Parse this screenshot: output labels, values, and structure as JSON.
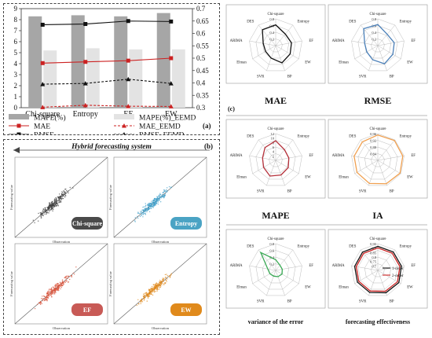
{
  "panel_a": {
    "label": "(a)",
    "chart_data": {
      "type": "bar+line",
      "categories": [
        "Chi-square",
        "Entropy",
        "EF",
        "EW"
      ],
      "left_axis": {
        "ylim": [
          0,
          9
        ],
        "ticks": [
          "0",
          "1",
          "2",
          "3",
          "4",
          "5",
          "6",
          "7",
          "8",
          "9"
        ]
      },
      "right_axis": {
        "ylim": [
          0.3,
          0.7
        ],
        "ticks": [
          "0.3",
          "0.35",
          "0.4",
          "0.45",
          "0.5",
          "0.55",
          "0.6",
          "0.65",
          "0.7"
        ]
      },
      "series": [
        {
          "name": "MAPE(%)",
          "kind": "bar",
          "axis": "left",
          "color": "#a6a6a6",
          "values": [
            8.3,
            8.4,
            8.3,
            8.6
          ]
        },
        {
          "name": "MAPE(%)_EEMD",
          "kind": "bar",
          "axis": "left",
          "color": "#e3e3e3",
          "values": [
            5.2,
            5.4,
            5.3,
            5.3
          ]
        },
        {
          "name": "MAE",
          "kind": "line",
          "axis": "right",
          "color": "#cc2222",
          "dash": "solid",
          "marker": "square",
          "values": [
            0.48,
            0.485,
            0.49,
            0.5
          ]
        },
        {
          "name": "MAE_EEMD",
          "kind": "line",
          "axis": "right",
          "color": "#cc2222",
          "dash": "dashed",
          "marker": "triangle",
          "values": [
            0.302,
            0.31,
            0.306,
            0.305
          ]
        },
        {
          "name": "RMSE",
          "kind": "line",
          "axis": "right",
          "color": "#111111",
          "dash": "solid",
          "marker": "square",
          "values": [
            0.635,
            0.638,
            0.65,
            0.648
          ]
        },
        {
          "name": "RMSE_EEMD",
          "kind": "line",
          "axis": "right",
          "color": "#111111",
          "dash": "dashed",
          "marker": "triangle",
          "values": [
            0.395,
            0.398,
            0.415,
            0.398
          ]
        }
      ]
    }
  },
  "panel_b": {
    "label": "(b)",
    "banner": "Hybrid forecasting system",
    "x_label": "Observation",
    "y_label": "Forecasting value",
    "scatters": [
      {
        "badge": "Chi-square",
        "color": "#3c3c3c",
        "badge_color": "#4a4a4a"
      },
      {
        "badge": "Entropy",
        "color": "#3d9dc8",
        "badge_color": "#4aa3c4"
      },
      {
        "badge": "EF",
        "color": "#d9543c",
        "badge_color": "#c85a56"
      },
      {
        "badge": "EW",
        "color": "#e08a1c",
        "badge_color": "#e08a1c"
      }
    ]
  },
  "panel_c": {
    "label": "(c)",
    "axes": [
      "Chi-square",
      "Entropy",
      "EF",
      "EW",
      "BP",
      "SVR",
      "Elman",
      "ARIMA",
      "DES"
    ],
    "radars": [
      {
        "caption": "MAE",
        "color": "#111111",
        "ticks": [
          "0.8",
          "0.6",
          "0.4",
          "0.2"
        ],
        "max": 0.8,
        "values": [
          0.62,
          0.45,
          0.48,
          0.5,
          0.55,
          0.4,
          0.35,
          0.38,
          0.62
        ]
      },
      {
        "caption": "RMSE",
        "color": "#4a7fb8",
        "ticks": [
          "0.8",
          "0.6",
          "0.4",
          "0.2"
        ],
        "max": 0.8,
        "values": [
          0.63,
          0.44,
          0.5,
          0.52,
          0.58,
          0.45,
          0.38,
          0.4,
          0.66
        ]
      },
      {
        "caption": "MAPE",
        "color": "#b5303a",
        "ticks": [
          "12",
          "10",
          "8",
          "6",
          "4",
          "2"
        ],
        "max": 12,
        "values": [
          8.8,
          6.2,
          6.0,
          6.5,
          7.0,
          7.5,
          6.3,
          6.0,
          7.5
        ]
      },
      {
        "caption": "IA",
        "color": "#f0a050",
        "ticks": [
          "0.96",
          "0.92",
          "0.88",
          "0.84"
        ],
        "max": 1.0,
        "values": [
          0.95,
          0.97,
          0.95,
          0.96,
          0.93,
          0.92,
          0.9,
          0.9,
          0.9
        ]
      },
      {
        "caption": "variance of the error",
        "color": "#3aaa55",
        "ticks": [
          "0.8",
          "0.6",
          "0.4",
          "0.2"
        ],
        "max": 0.8,
        "values": [
          0.32,
          0.2,
          0.2,
          0.22,
          0.2,
          0.18,
          0.2,
          0.24,
          0.7
        ]
      },
      {
        "caption": "forecasting effectiveness",
        "color": "#111111",
        "ticks": [
          "0.95",
          "0.9",
          "0.85",
          "0.8",
          "0.75",
          "0.7"
        ],
        "max": 1.0,
        "series": [
          {
            "name": "1-order",
            "color": "#111111",
            "values": [
              0.9,
              0.9,
              0.9,
              0.91,
              0.89,
              0.88,
              0.88,
              0.88,
              0.89
            ]
          },
          {
            "name": "2-order",
            "color": "#cc2222",
            "values": [
              0.84,
              0.84,
              0.84,
              0.85,
              0.83,
              0.82,
              0.82,
              0.82,
              0.83
            ]
          }
        ]
      }
    ]
  }
}
